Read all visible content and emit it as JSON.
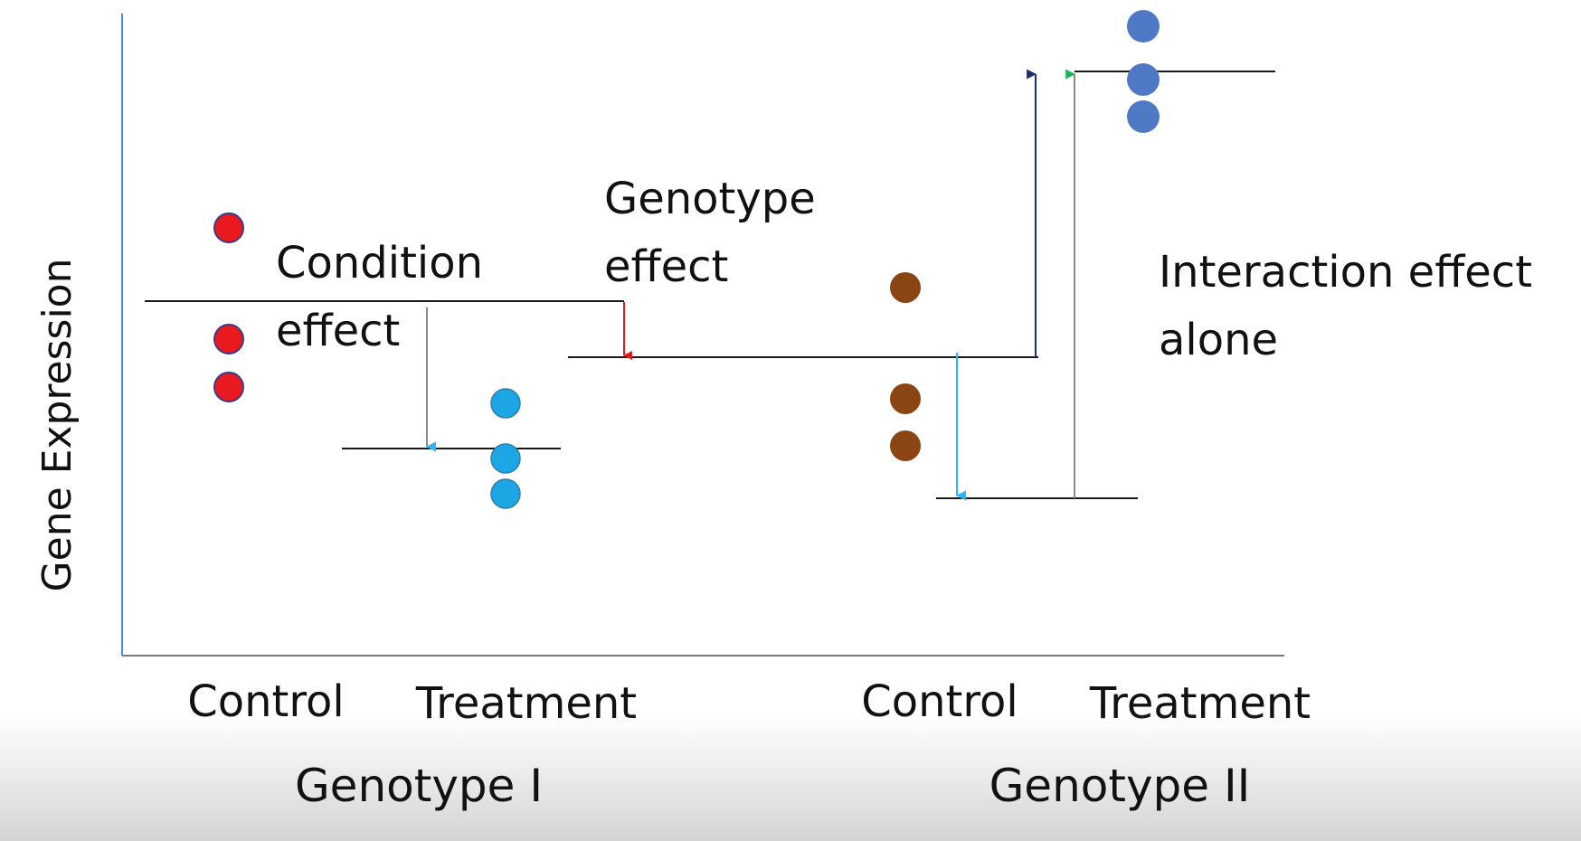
{
  "y_axis_label": "Gene Expression",
  "x_labels": {
    "control_1": "Control",
    "treatment_1": "Treatment",
    "control_2": "Control",
    "treatment_2": "Treatment"
  },
  "group_labels": {
    "genotype_1": "Genotype I",
    "genotype_2": "Genotype II"
  },
  "annotations": {
    "condition_effect": [
      "Condition",
      "effect"
    ],
    "genotype_effect": [
      "Genotype",
      "effect"
    ],
    "interaction_effect": [
      "Interaction effect",
      "alone"
    ]
  },
  "colors": {
    "axis": "#4a86e8",
    "genotype1_control": "#e8191f",
    "genotype1_treatment": "#1da6e4",
    "genotype2_control": "#8b4512",
    "genotype2_treatment": "#4f79c4",
    "condition_arrow": "#29b6f6",
    "genotype_arrow": "#e11b1b",
    "interaction_arrow_total": "#1a2e6b",
    "interaction_arrow_alone": "#21b35a"
  }
}
